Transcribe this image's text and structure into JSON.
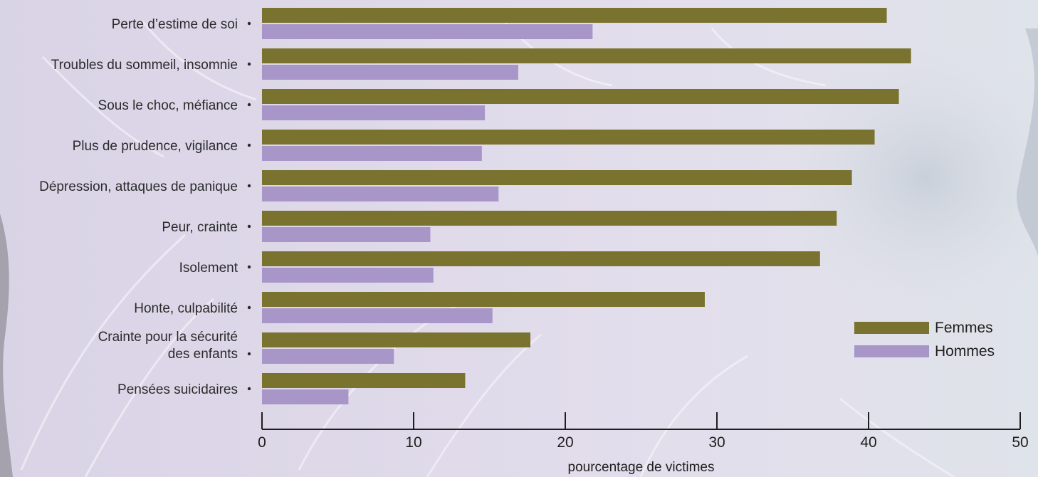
{
  "chart_data": {
    "type": "bar",
    "orientation": "horizontal",
    "categories": [
      [
        "Perte d’estime de soi"
      ],
      [
        "Troubles du sommeil, insomnie"
      ],
      [
        "Sous le choc, méfiance"
      ],
      [
        "Plus de prudence, vigilance"
      ],
      [
        "Dépression, attaques de panique"
      ],
      [
        "Peur, crainte"
      ],
      [
        "Isolement"
      ],
      [
        "Honte, culpabilité"
      ],
      [
        "Crainte pour la sécurité",
        "des enfants"
      ],
      [
        "Pensées suicidaires"
      ]
    ],
    "series": [
      {
        "name": "Femmes",
        "color": "#7a7330",
        "values": [
          41.2,
          42.8,
          42.0,
          40.4,
          38.9,
          37.9,
          36.8,
          29.2,
          17.7,
          13.4
        ]
      },
      {
        "name": "Hommes",
        "color": "#a996c8",
        "values": [
          21.8,
          16.9,
          14.7,
          14.5,
          15.6,
          11.1,
          11.3,
          15.2,
          8.7,
          5.7
        ]
      }
    ],
    "xlim": [
      0,
      50
    ],
    "xticks": [
      0,
      10,
      20,
      30,
      40,
      50
    ],
    "xlabel": "pourcentage de victimes",
    "legend_position": "bottom-right",
    "grid": false
  }
}
